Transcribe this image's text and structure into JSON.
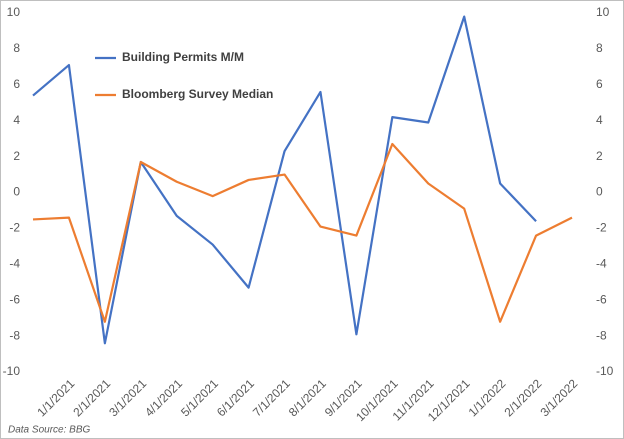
{
  "chart_data": {
    "type": "line",
    "categories": [
      null,
      "1/1/2021",
      "2/1/2021",
      "3/1/2021",
      "4/1/2021",
      "5/1/2021",
      "6/1/2021",
      "7/1/2021",
      "8/1/2021",
      "9/1/2021",
      "10/1/2021",
      "11/1/2021",
      "12/1/2021",
      "1/1/2022",
      "2/1/2022",
      "3/1/2022"
    ],
    "series": [
      {
        "name": "Building Permits M/M",
        "color": "#4472c4",
        "values": [
          5.4,
          7.1,
          -8.4,
          1.7,
          -1.3,
          -2.9,
          -5.3,
          2.3,
          5.6,
          -7.9,
          4.2,
          3.9,
          9.8,
          0.5,
          -1.6,
          null
        ]
      },
      {
        "name": "Bloomberg Survey Median",
        "color": "#ed7d31",
        "values": [
          -1.5,
          -1.4,
          -7.2,
          1.7,
          0.6,
          -0.2,
          0.7,
          1.0,
          -1.9,
          -2.4,
          2.7,
          0.5,
          -0.9,
          -7.2,
          -2.4,
          -1.4
        ]
      }
    ],
    "ylim": [
      -10,
      10
    ],
    "yticks": [
      -10,
      -8,
      -6,
      -4,
      -2,
      0,
      2,
      4,
      6,
      8,
      10
    ],
    "y2lim": [
      -10,
      10
    ],
    "y2ticks": [
      -10,
      -8,
      -6,
      -4,
      -2,
      0,
      2,
      4,
      6,
      8,
      10
    ],
    "grid": false,
    "legend": "upper left",
    "source": "Data Source: BBG"
  }
}
